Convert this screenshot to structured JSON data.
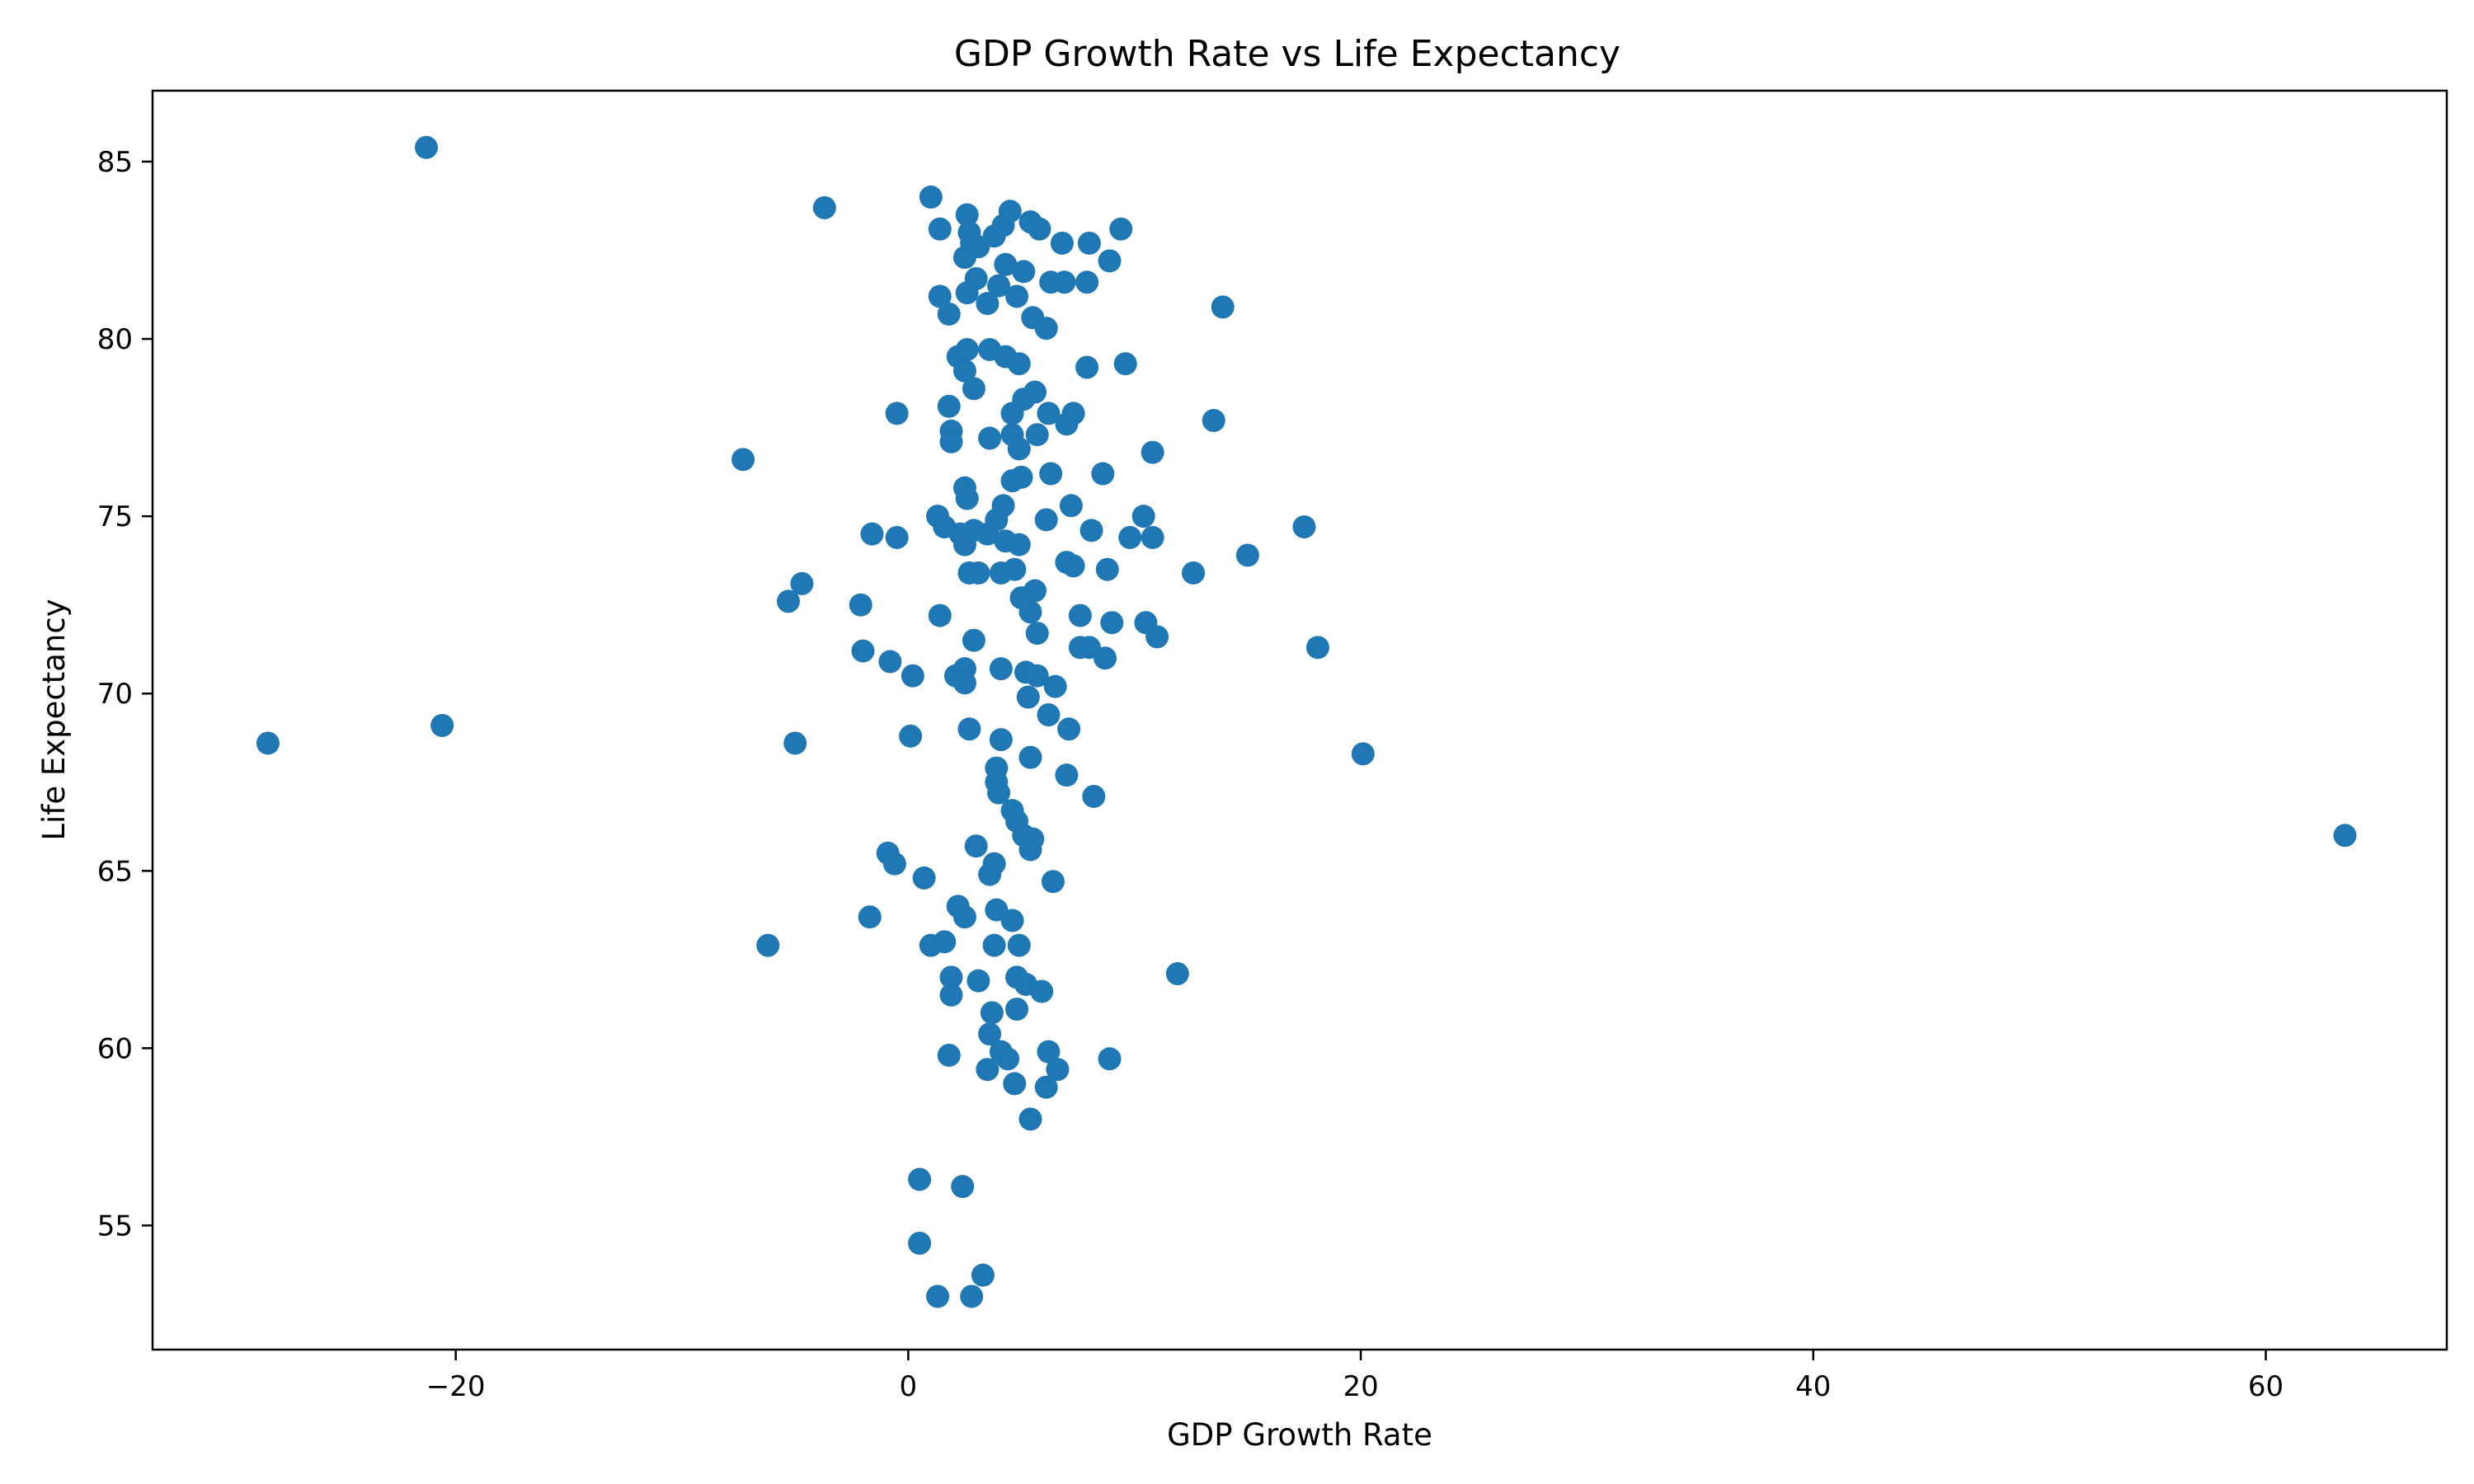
{
  "chart_data": {
    "type": "scatter",
    "title": "GDP Growth Rate vs Life Expectancy",
    "xlabel": "GDP Growth Rate",
    "ylabel": "Life Expectancy",
    "xlim": [
      -33.4,
      68.0
    ],
    "ylim": [
      51.5,
      87.0
    ],
    "xticks": [
      -20,
      0,
      20,
      40,
      60
    ],
    "xtick_labels": [
      "−20",
      "0",
      "20",
      "40",
      "60"
    ],
    "yticks": [
      55,
      60,
      65,
      70,
      75,
      80,
      85
    ],
    "ytick_labels": [
      "55",
      "60",
      "65",
      "70",
      "75",
      "80",
      "85"
    ],
    "grid": false,
    "marker_color": "#1f77b4",
    "points": [
      [
        -21.3,
        85.4
      ],
      [
        -3.7,
        83.7
      ],
      [
        1.0,
        84.0
      ],
      [
        1.4,
        83.1
      ],
      [
        2.6,
        83.5
      ],
      [
        2.7,
        83.0
      ],
      [
        2.8,
        82.7
      ],
      [
        2.5,
        82.3
      ],
      [
        3.1,
        82.6
      ],
      [
        3.8,
        82.9
      ],
      [
        4.2,
        83.2
      ],
      [
        4.5,
        83.6
      ],
      [
        5.4,
        83.3
      ],
      [
        5.8,
        83.1
      ],
      [
        6.8,
        82.7
      ],
      [
        8.0,
        82.7
      ],
      [
        9.4,
        83.1
      ],
      [
        8.9,
        82.2
      ],
      [
        4.3,
        82.1
      ],
      [
        5.1,
        81.9
      ],
      [
        1.4,
        81.2
      ],
      [
        2.6,
        81.3
      ],
      [
        3.0,
        81.7
      ],
      [
        3.5,
        81.0
      ],
      [
        4.0,
        81.5
      ],
      [
        4.8,
        81.2
      ],
      [
        6.3,
        81.6
      ],
      [
        6.9,
        81.6
      ],
      [
        7.9,
        81.6
      ],
      [
        1.8,
        80.7
      ],
      [
        5.5,
        80.6
      ],
      [
        6.1,
        80.3
      ],
      [
        13.9,
        80.9
      ],
      [
        2.2,
        79.5
      ],
      [
        2.5,
        79.1
      ],
      [
        2.6,
        79.7
      ],
      [
        3.6,
        79.7
      ],
      [
        4.3,
        79.5
      ],
      [
        4.9,
        79.3
      ],
      [
        7.9,
        79.2
      ],
      [
        9.6,
        79.3
      ],
      [
        2.9,
        78.6
      ],
      [
        5.1,
        78.3
      ],
      [
        5.6,
        78.5
      ],
      [
        1.8,
        78.1
      ],
      [
        4.6,
        77.9
      ],
      [
        6.2,
        77.9
      ],
      [
        7.3,
        77.9
      ],
      [
        -0.5,
        77.9
      ],
      [
        1.9,
        77.4
      ],
      [
        1.9,
        77.1
      ],
      [
        3.6,
        77.2
      ],
      [
        4.6,
        77.3
      ],
      [
        5.7,
        77.3
      ],
      [
        7.0,
        77.6
      ],
      [
        13.5,
        77.7
      ],
      [
        4.9,
        76.9
      ],
      [
        10.8,
        76.8
      ],
      [
        -7.3,
        76.6
      ],
      [
        4.6,
        76.0
      ],
      [
        5.0,
        76.1
      ],
      [
        6.3,
        76.2
      ],
      [
        8.6,
        76.2
      ],
      [
        2.5,
        75.8
      ],
      [
        2.6,
        75.5
      ],
      [
        4.2,
        75.3
      ],
      [
        7.2,
        75.3
      ],
      [
        1.3,
        75.0
      ],
      [
        1.6,
        74.7
      ],
      [
        2.3,
        74.5
      ],
      [
        2.5,
        74.2
      ],
      [
        2.9,
        74.6
      ],
      [
        3.5,
        74.5
      ],
      [
        3.9,
        74.9
      ],
      [
        4.3,
        74.3
      ],
      [
        4.9,
        74.2
      ],
      [
        6.1,
        74.9
      ],
      [
        8.1,
        74.6
      ],
      [
        9.8,
        74.4
      ],
      [
        10.4,
        75.0
      ],
      [
        10.8,
        74.4
      ],
      [
        17.5,
        74.7
      ],
      [
        -1.6,
        74.5
      ],
      [
        -0.5,
        74.4
      ],
      [
        2.7,
        73.4
      ],
      [
        3.1,
        73.4
      ],
      [
        4.1,
        73.4
      ],
      [
        4.7,
        73.5
      ],
      [
        7.0,
        73.7
      ],
      [
        7.3,
        73.6
      ],
      [
        8.8,
        73.5
      ],
      [
        12.6,
        73.4
      ],
      [
        15.0,
        73.9
      ],
      [
        -4.7,
        73.1
      ],
      [
        -5.3,
        72.6
      ],
      [
        -2.1,
        72.5
      ],
      [
        1.4,
        72.2
      ],
      [
        5.0,
        72.7
      ],
      [
        5.4,
        72.3
      ],
      [
        5.6,
        72.9
      ],
      [
        7.6,
        72.2
      ],
      [
        9.0,
        72.0
      ],
      [
        10.5,
        72.0
      ],
      [
        11.0,
        71.6
      ],
      [
        5.7,
        71.7
      ],
      [
        2.9,
        71.5
      ],
      [
        7.6,
        71.3
      ],
      [
        8.0,
        71.3
      ],
      [
        -2.0,
        71.2
      ],
      [
        -0.8,
        70.9
      ],
      [
        0.2,
        70.5
      ],
      [
        2.1,
        70.5
      ],
      [
        2.5,
        70.7
      ],
      [
        2.5,
        70.3
      ],
      [
        4.1,
        70.7
      ],
      [
        5.2,
        70.6
      ],
      [
        5.7,
        70.5
      ],
      [
        6.5,
        70.2
      ],
      [
        8.7,
        71.0
      ],
      [
        18.1,
        71.3
      ],
      [
        5.3,
        69.9
      ],
      [
        6.2,
        69.4
      ],
      [
        -28.3,
        68.6
      ],
      [
        -20.6,
        69.1
      ],
      [
        -5.0,
        68.6
      ],
      [
        0.1,
        68.8
      ],
      [
        2.7,
        69.0
      ],
      [
        4.1,
        68.7
      ],
      [
        7.1,
        69.0
      ],
      [
        5.4,
        68.2
      ],
      [
        20.1,
        68.3
      ],
      [
        3.9,
        67.9
      ],
      [
        3.9,
        67.5
      ],
      [
        4.0,
        67.2
      ],
      [
        7.0,
        67.7
      ],
      [
        8.2,
        67.1
      ],
      [
        4.6,
        66.7
      ],
      [
        4.8,
        66.4
      ],
      [
        5.1,
        66.0
      ],
      [
        5.5,
        65.9
      ],
      [
        5.4,
        65.6
      ],
      [
        63.5,
        66.0
      ],
      [
        -0.9,
        65.5
      ],
      [
        -0.6,
        65.2
      ],
      [
        3.0,
        65.7
      ],
      [
        3.8,
        65.2
      ],
      [
        3.6,
        64.9
      ],
      [
        0.7,
        64.8
      ],
      [
        6.4,
        64.7
      ],
      [
        2.2,
        64.0
      ],
      [
        2.5,
        63.7
      ],
      [
        3.9,
        63.9
      ],
      [
        4.6,
        63.6
      ],
      [
        -1.7,
        63.7
      ],
      [
        -6.2,
        62.9
      ],
      [
        1.0,
        62.9
      ],
      [
        1.6,
        63.0
      ],
      [
        3.8,
        62.9
      ],
      [
        4.9,
        62.9
      ],
      [
        1.9,
        62.0
      ],
      [
        3.1,
        61.9
      ],
      [
        4.8,
        62.0
      ],
      [
        5.2,
        61.8
      ],
      [
        5.9,
        61.6
      ],
      [
        1.9,
        61.5
      ],
      [
        3.7,
        61.0
      ],
      [
        4.8,
        61.1
      ],
      [
        3.6,
        60.4
      ],
      [
        1.8,
        59.8
      ],
      [
        4.1,
        59.9
      ],
      [
        4.4,
        59.7
      ],
      [
        3.5,
        59.4
      ],
      [
        4.7,
        59.0
      ],
      [
        6.2,
        59.9
      ],
      [
        6.6,
        59.4
      ],
      [
        6.1,
        58.9
      ],
      [
        8.9,
        59.7
      ],
      [
        5.4,
        58.0
      ],
      [
        11.9,
        62.1
      ],
      [
        0.5,
        56.3
      ],
      [
        2.4,
        56.1
      ],
      [
        0.5,
        54.5
      ],
      [
        3.3,
        53.6
      ],
      [
        1.3,
        53.0
      ],
      [
        2.8,
        53.0
      ]
    ]
  }
}
